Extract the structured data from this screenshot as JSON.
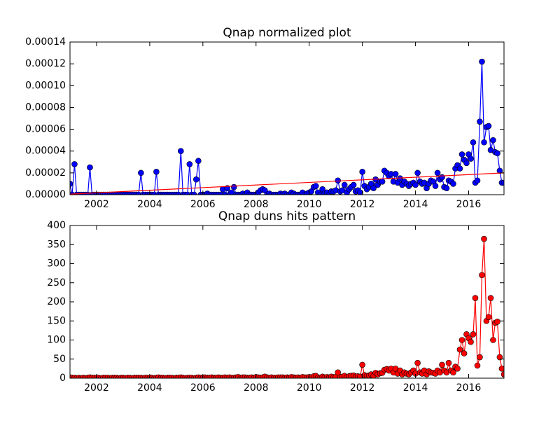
{
  "chart_data": [
    {
      "type": "line",
      "title": "Qnap normalized plot",
      "xlim": [
        2001,
        2017.33
      ],
      "xticks": [
        2002,
        2004,
        2006,
        2008,
        2010,
        2012,
        2014,
        2016
      ],
      "ylim": [
        0,
        0.00014
      ],
      "yticks": [
        {
          "value": 0,
          "label": "0.00000"
        },
        {
          "value": 2e-05,
          "label": "0.00002"
        },
        {
          "value": 4e-05,
          "label": "0.00004"
        },
        {
          "value": 6e-05,
          "label": "0.00006"
        },
        {
          "value": 8e-05,
          "label": "0.00008"
        },
        {
          "value": 0.0001,
          "label": "0.00010"
        },
        {
          "value": 0.00012,
          "label": "0.00012"
        },
        {
          "value": 0.00014,
          "label": "0.00014"
        }
      ],
      "grid": false,
      "x": [
        2001.0,
        2001.08,
        2001.17,
        2001.25,
        2001.33,
        2001.42,
        2001.5,
        2001.58,
        2001.67,
        2001.75,
        2001.83,
        2001.92,
        2002.0,
        2002.08,
        2002.17,
        2002.25,
        2002.33,
        2002.42,
        2002.5,
        2002.58,
        2002.67,
        2002.75,
        2002.83,
        2002.92,
        2003.0,
        2003.08,
        2003.17,
        2003.25,
        2003.33,
        2003.42,
        2003.5,
        2003.58,
        2003.67,
        2003.75,
        2003.83,
        2003.92,
        2004.0,
        2004.08,
        2004.17,
        2004.25,
        2004.33,
        2004.42,
        2004.5,
        2004.58,
        2004.67,
        2004.75,
        2004.83,
        2004.92,
        2005.0,
        2005.08,
        2005.17,
        2005.25,
        2005.33,
        2005.42,
        2005.5,
        2005.58,
        2005.67,
        2005.75,
        2005.83,
        2005.92,
        2006.0,
        2006.08,
        2006.17,
        2006.25,
        2006.33,
        2006.42,
        2006.5,
        2006.58,
        2006.67,
        2006.75,
        2006.83,
        2006.92,
        2007.0,
        2007.08,
        2007.17,
        2007.25,
        2007.33,
        2007.42,
        2007.5,
        2007.58,
        2007.67,
        2007.75,
        2007.83,
        2007.92,
        2008.0,
        2008.08,
        2008.17,
        2008.25,
        2008.33,
        2008.42,
        2008.5,
        2008.58,
        2008.67,
        2008.75,
        2008.83,
        2008.92,
        2009.0,
        2009.08,
        2009.17,
        2009.25,
        2009.33,
        2009.42,
        2009.5,
        2009.58,
        2009.67,
        2009.75,
        2009.83,
        2009.92,
        2010.0,
        2010.08,
        2010.17,
        2010.25,
        2010.33,
        2010.42,
        2010.5,
        2010.58,
        2010.67,
        2010.75,
        2010.83,
        2010.92,
        2011.0,
        2011.08,
        2011.17,
        2011.25,
        2011.33,
        2011.42,
        2011.5,
        2011.58,
        2011.67,
        2011.75,
        2011.83,
        2011.92,
        2012.0,
        2012.08,
        2012.17,
        2012.25,
        2012.33,
        2012.42,
        2012.5,
        2012.58,
        2012.67,
        2012.75,
        2012.83,
        2012.92,
        2013.0,
        2013.08,
        2013.17,
        2013.25,
        2013.33,
        2013.42,
        2013.5,
        2013.58,
        2013.67,
        2013.75,
        2013.83,
        2013.92,
        2014.0,
        2014.08,
        2014.17,
        2014.25,
        2014.33,
        2014.42,
        2014.5,
        2014.58,
        2014.67,
        2014.75,
        2014.83,
        2014.92,
        2015.0,
        2015.08,
        2015.17,
        2015.25,
        2015.33,
        2015.42,
        2015.5,
        2015.58,
        2015.67,
        2015.75,
        2015.83,
        2015.92,
        2016.0,
        2016.08,
        2016.17,
        2016.25,
        2016.33,
        2016.42,
        2016.5,
        2016.58,
        2016.67,
        2016.75,
        2016.83,
        2016.92,
        2017.0,
        2017.08,
        2017.17,
        2017.25,
        2017.33
      ],
      "series": [
        {
          "color": "#0000ff",
          "marker": true,
          "values": [
            1e-05,
            0,
            2.8e-05,
            0,
            0,
            0,
            0,
            0,
            0,
            2.5e-05,
            0,
            0,
            0,
            0,
            0,
            0,
            0,
            0,
            0,
            0,
            0,
            0,
            0,
            0,
            0,
            0,
            0,
            0,
            0,
            0,
            0,
            0,
            2e-05,
            0,
            0,
            0,
            0,
            0,
            0,
            2.1e-05,
            0,
            0,
            0,
            0,
            0,
            0,
            0,
            0,
            0,
            0,
            4e-05,
            0,
            0,
            0,
            2.8e-05,
            0,
            0,
            1.4e-05,
            3.1e-05,
            0,
            0,
            0,
            1e-06,
            0,
            0,
            0,
            0,
            0,
            0,
            5e-06,
            0,
            6e-06,
            0,
            2e-06,
            7e-06,
            0,
            0,
            0,
            1e-06,
            0,
            2e-06,
            0,
            0,
            0,
            0,
            2e-06,
            4e-06,
            5e-06,
            4e-06,
            0,
            1e-06,
            0,
            0,
            0,
            0,
            1e-06,
            0,
            1e-06,
            0,
            0,
            2e-06,
            1e-06,
            0,
            0,
            0,
            2e-06,
            0,
            1e-06,
            2e-06,
            3e-06,
            7e-06,
            8e-06,
            2e-06,
            0,
            5e-06,
            1e-06,
            2e-06,
            0,
            3e-06,
            3e-06,
            4e-06,
            1.3e-05,
            3e-06,
            4e-06,
            9e-06,
            2e-06,
            5e-06,
            7e-06,
            9e-06,
            3e-06,
            4e-06,
            2e-06,
            2.1e-05,
            8e-06,
            5e-06,
            7e-06,
            1e-05,
            6e-06,
            1.4e-05,
            9e-06,
            1.2e-05,
            1.2e-05,
            2.2e-05,
            2e-05,
            1.7e-05,
            1.9e-05,
            1.2e-05,
            1.9e-05,
            1.1e-05,
            1.5e-05,
            9e-06,
            1.2e-05,
            1e-05,
            8e-06,
            1e-05,
            1.1e-05,
            9e-06,
            2e-05,
            1.2e-05,
            1e-05,
            1.1e-05,
            6e-06,
            1e-05,
            1.3e-05,
            1.2e-05,
            8e-06,
            2e-05,
            1.4e-05,
            1.6e-05,
            7e-06,
            6e-06,
            1.3e-05,
            1.2e-05,
            1e-05,
            2.4e-05,
            2.7e-05,
            2.4e-05,
            3.7e-05,
            3.2e-05,
            2.9e-05,
            3.7e-05,
            3.3e-05,
            4.8e-05,
            1.1e-05,
            1.3e-05,
            6.7e-05,
            0.000122,
            4.8e-05,
            6.2e-05,
            6.3e-05,
            4.1e-05,
            5e-05,
            3.9e-05,
            3.8e-05,
            2.2e-05,
            1.1e-05,
            1.1e-05
          ]
        },
        {
          "color": "#ff0000",
          "marker": false,
          "x": [
            2001.0,
            2017.33
          ],
          "values": [
            5e-07,
            2e-05
          ]
        }
      ]
    },
    {
      "type": "line",
      "title": "Qnap duns hits pattern",
      "xlim": [
        2001,
        2017.33
      ],
      "xticks": [
        2002,
        2004,
        2006,
        2008,
        2010,
        2012,
        2014,
        2016
      ],
      "ylim": [
        0,
        400
      ],
      "yticks": [
        0,
        50,
        100,
        150,
        200,
        250,
        300,
        350,
        400
      ],
      "grid": false,
      "x": [
        2001.0,
        2001.08,
        2001.17,
        2001.25,
        2001.33,
        2001.42,
        2001.5,
        2001.58,
        2001.67,
        2001.75,
        2001.83,
        2001.92,
        2002.0,
        2002.08,
        2002.17,
        2002.25,
        2002.33,
        2002.42,
        2002.5,
        2002.58,
        2002.67,
        2002.75,
        2002.83,
        2002.92,
        2003.0,
        2003.08,
        2003.17,
        2003.25,
        2003.33,
        2003.42,
        2003.5,
        2003.58,
        2003.67,
        2003.75,
        2003.83,
        2003.92,
        2004.0,
        2004.08,
        2004.17,
        2004.25,
        2004.33,
        2004.42,
        2004.5,
        2004.58,
        2004.67,
        2004.75,
        2004.83,
        2004.92,
        2005.0,
        2005.08,
        2005.17,
        2005.25,
        2005.33,
        2005.42,
        2005.5,
        2005.58,
        2005.67,
        2005.75,
        2005.83,
        2005.92,
        2006.0,
        2006.08,
        2006.17,
        2006.25,
        2006.33,
        2006.42,
        2006.5,
        2006.58,
        2006.67,
        2006.75,
        2006.83,
        2006.92,
        2007.0,
        2007.08,
        2007.17,
        2007.25,
        2007.33,
        2007.42,
        2007.5,
        2007.58,
        2007.67,
        2007.75,
        2007.83,
        2007.92,
        2008.0,
        2008.08,
        2008.17,
        2008.25,
        2008.33,
        2008.42,
        2008.5,
        2008.58,
        2008.67,
        2008.75,
        2008.83,
        2008.92,
        2009.0,
        2009.08,
        2009.17,
        2009.25,
        2009.33,
        2009.42,
        2009.5,
        2009.58,
        2009.67,
        2009.75,
        2009.83,
        2009.92,
        2010.0,
        2010.08,
        2010.17,
        2010.25,
        2010.33,
        2010.42,
        2010.5,
        2010.58,
        2010.67,
        2010.75,
        2010.83,
        2010.92,
        2011.0,
        2011.08,
        2011.17,
        2011.25,
        2011.33,
        2011.42,
        2011.5,
        2011.58,
        2011.67,
        2011.75,
        2011.83,
        2011.92,
        2012.0,
        2012.08,
        2012.17,
        2012.25,
        2012.33,
        2012.42,
        2012.5,
        2012.58,
        2012.67,
        2012.75,
        2012.83,
        2012.92,
        2013.0,
        2013.08,
        2013.17,
        2013.25,
        2013.33,
        2013.42,
        2013.5,
        2013.58,
        2013.67,
        2013.75,
        2013.83,
        2013.92,
        2014.0,
        2014.08,
        2014.17,
        2014.25,
        2014.33,
        2014.42,
        2014.5,
        2014.58,
        2014.67,
        2014.75,
        2014.83,
        2014.92,
        2015.0,
        2015.08,
        2015.17,
        2015.25,
        2015.33,
        2015.42,
        2015.5,
        2015.58,
        2015.67,
        2015.75,
        2015.83,
        2015.92,
        2016.0,
        2016.08,
        2016.17,
        2016.25,
        2016.33,
        2016.42,
        2016.5,
        2016.58,
        2016.67,
        2016.75,
        2016.83,
        2016.92,
        2017.0,
        2017.08,
        2017.17,
        2017.25,
        2017.33
      ],
      "series": [
        {
          "color": "#ff0000",
          "marker": true,
          "values": [
            2,
            1,
            1,
            0,
            1,
            0,
            1,
            0,
            1,
            2,
            1,
            1,
            1,
            1,
            0,
            1,
            1,
            1,
            0,
            1,
            1,
            1,
            0,
            1,
            1,
            0,
            1,
            1,
            0,
            1,
            1,
            1,
            1,
            0,
            1,
            1,
            1,
            1,
            0,
            1,
            2,
            1,
            1,
            0,
            1,
            1,
            1,
            0,
            1,
            1,
            2,
            1,
            0,
            1,
            1,
            1,
            0,
            1,
            2,
            1,
            1,
            2,
            1,
            1,
            2,
            1,
            1,
            2,
            1,
            1,
            2,
            1,
            2,
            1,
            1,
            2,
            3,
            1,
            2,
            2,
            1,
            1,
            2,
            1,
            3,
            2,
            1,
            2,
            4,
            2,
            1,
            2,
            1,
            1,
            2,
            2,
            2,
            1,
            2,
            1,
            3,
            2,
            1,
            2,
            1,
            3,
            2,
            2,
            3,
            2,
            5,
            6,
            2,
            1,
            4,
            2,
            3,
            2,
            4,
            3,
            3,
            15,
            3,
            4,
            6,
            3,
            5,
            6,
            7,
            4,
            5,
            4,
            35,
            8,
            6,
            7,
            10,
            6,
            14,
            10,
            13,
            14,
            22,
            24,
            20,
            25,
            15,
            25,
            12,
            20,
            10,
            15,
            12,
            10,
            15,
            20,
            12,
            40,
            15,
            12,
            20,
            10,
            18,
            15,
            14,
            12,
            20,
            15,
            35,
            20,
            15,
            40,
            20,
            15,
            30,
            25,
            75,
            100,
            65,
            115,
            105,
            95,
            115,
            210,
            33,
            55,
            270,
            365,
            150,
            160,
            210,
            100,
            145,
            148,
            55,
            25,
            10
          ]
        }
      ]
    }
  ]
}
